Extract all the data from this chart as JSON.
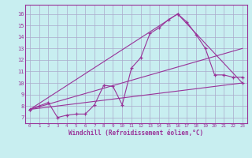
{
  "xlabel": "Windchill (Refroidissement éolien,°C)",
  "ylabel": "",
  "background_color": "#c8eef0",
  "grid_color": "#aaaacc",
  "line_color": "#993399",
  "xlim": [
    -0.5,
    23.5
  ],
  "ylim": [
    6.5,
    16.8
  ],
  "yticks": [
    7,
    8,
    9,
    10,
    11,
    12,
    13,
    14,
    15,
    16
  ],
  "xticks": [
    0,
    1,
    2,
    3,
    4,
    5,
    6,
    7,
    8,
    9,
    10,
    11,
    12,
    13,
    14,
    15,
    16,
    17,
    18,
    19,
    20,
    21,
    22,
    23
  ],
  "line1_x": [
    0,
    1,
    2,
    3,
    4,
    5,
    6,
    7,
    8,
    9,
    10,
    11,
    12,
    13,
    14,
    15,
    16,
    17,
    18,
    19,
    20,
    21,
    22,
    23
  ],
  "line1_y": [
    7.7,
    8.0,
    8.3,
    7.0,
    7.2,
    7.3,
    7.3,
    8.1,
    9.8,
    9.7,
    8.1,
    11.3,
    12.2,
    14.3,
    14.8,
    15.5,
    16.0,
    15.3,
    14.2,
    13.0,
    10.7,
    10.7,
    10.5,
    10.5
  ],
  "line2_x": [
    0,
    23
  ],
  "line2_y": [
    7.7,
    10.0
  ],
  "line3_x": [
    0,
    23
  ],
  "line3_y": [
    7.7,
    13.0
  ],
  "line4_x": [
    0,
    16,
    23
  ],
  "line4_y": [
    7.7,
    16.0,
    10.0
  ]
}
